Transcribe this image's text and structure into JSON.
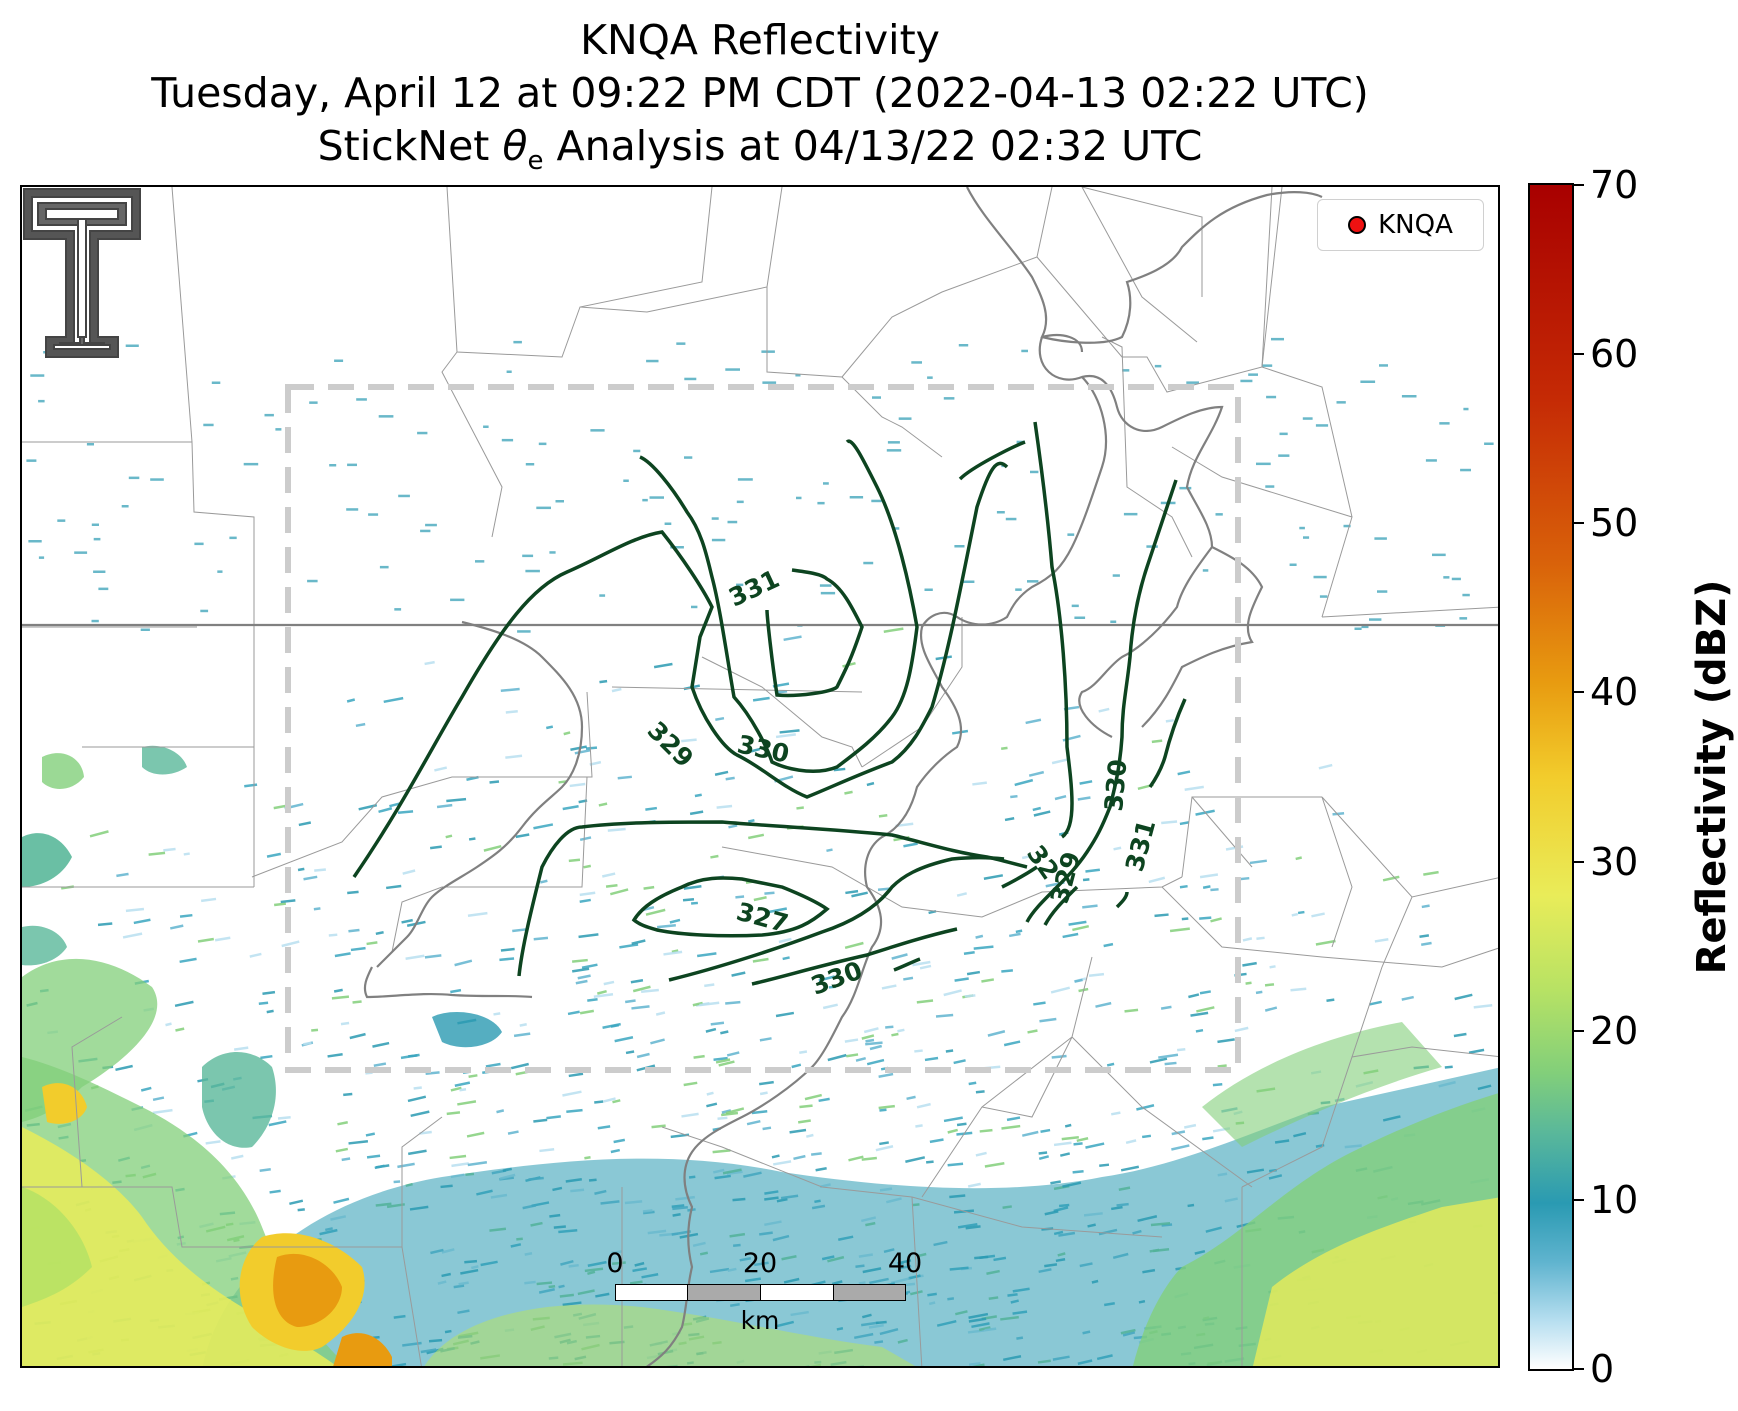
{
  "title": {
    "line1": "KNQA Reflectivity",
    "line2": "Tuesday, April 12 at 09:22 PM CDT (2022-04-13 02:22 UTC)",
    "line3_prefix": "StickNet ",
    "line3_symbol": "θ",
    "line3_subscript": "e",
    "line3_suffix": " Analysis at 04/13/22 02:32 UTC"
  },
  "legend": {
    "label": "KNQA",
    "marker_color": "#ee1111"
  },
  "colorbar": {
    "title": "Reflectivity (dBZ)",
    "ticks": [
      {
        "label": "70",
        "value": 70
      },
      {
        "label": "60",
        "value": 60
      },
      {
        "label": "50",
        "value": 50
      },
      {
        "label": "40",
        "value": 40
      },
      {
        "label": "30",
        "value": 30
      },
      {
        "label": "20",
        "value": 20
      },
      {
        "label": "10",
        "value": 10
      },
      {
        "label": "0",
        "value": 0
      }
    ],
    "min": 0,
    "max": 70,
    "colors": [
      "#ffffff",
      "#2a9ab2",
      "#82cf7a",
      "#e9ec59",
      "#f2cc2c",
      "#e89b10",
      "#d9620a",
      "#a80000"
    ]
  },
  "scalebar": {
    "labels": [
      "0",
      "20",
      "40"
    ],
    "unit": "km"
  },
  "contours": {
    "color": "#0d4420",
    "labels": [
      "331",
      "330",
      "329",
      "330",
      "331",
      "327",
      "329",
      "32",
      "330"
    ]
  },
  "map": {
    "state_line_color": "#7a7a7a",
    "county_line_color": "#9a9a9a",
    "river_color": "#808080",
    "domain_box_color": "#cccccc"
  },
  "logo": {
    "name": "Texas Tech Double T"
  }
}
